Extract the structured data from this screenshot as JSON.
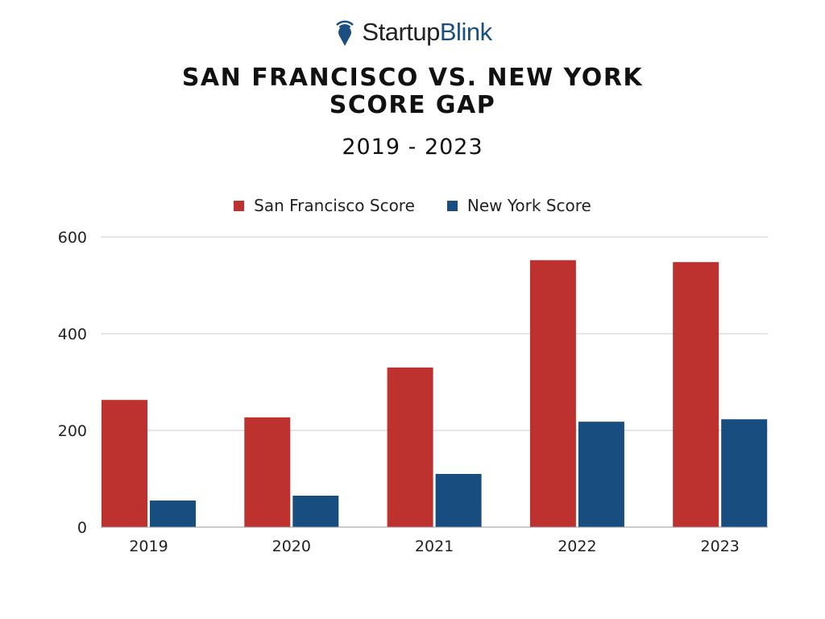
{
  "logo": {
    "part1": "Startup",
    "part2": "Blink"
  },
  "colors": {
    "sf": "#bd312e",
    "ny": "#184d80",
    "grid": "#cccccc"
  },
  "chart_data": {
    "type": "bar",
    "title": "SAN FRANCISCO VS. NEW YORK SCORE GAP",
    "title_line1": "SAN FRANCISCO VS. NEW YORK",
    "title_line2": "SCORE GAP",
    "subtitle": "2019 - 2023",
    "categories": [
      "2019",
      "2020",
      "2021",
      "2022",
      "2023"
    ],
    "series": [
      {
        "name": "San Francisco Score",
        "values": [
          263,
          227,
          330,
          552,
          548
        ]
      },
      {
        "name": "New York Score",
        "values": [
          55,
          65,
          110,
          218,
          223
        ]
      }
    ],
    "ylim": [
      0,
      600
    ],
    "yticks": [
      "0",
      "200",
      "400",
      "600"
    ],
    "legend_position": "top-center",
    "grid": true,
    "xlabel": "",
    "ylabel": ""
  }
}
